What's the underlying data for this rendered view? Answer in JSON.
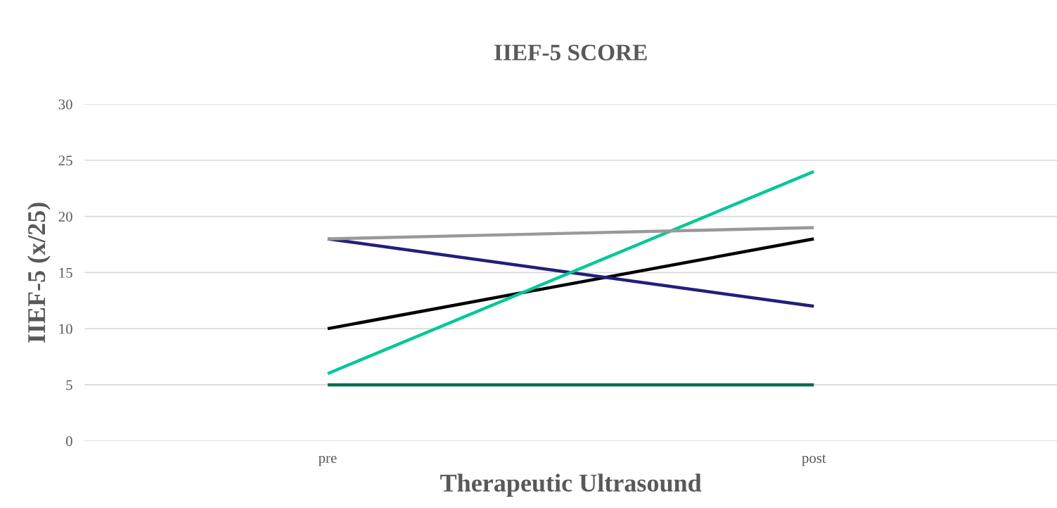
{
  "chart_data": {
    "type": "line",
    "title": "IIEF-5 SCORE",
    "xlabel": "Therapeutic Ultrasound",
    "ylabel": "IIEF-5 (x/25)",
    "categories": [
      "pre",
      "post"
    ],
    "series": [
      {
        "color": "#006e50",
        "values": [
          5,
          5
        ]
      },
      {
        "color": "#000000",
        "values": [
          10,
          18
        ]
      },
      {
        "color": "#231f78",
        "values": [
          18,
          12
        ]
      },
      {
        "color": "#00c896",
        "values": [
          6,
          24
        ]
      },
      {
        "color": "#999999",
        "values": [
          18,
          19
        ]
      }
    ],
    "ylim": [
      0,
      30
    ],
    "yticks": [
      0,
      5,
      10,
      15,
      20,
      25,
      30
    ],
    "grid": "y",
    "marker": "none",
    "line_style": "solid"
  }
}
